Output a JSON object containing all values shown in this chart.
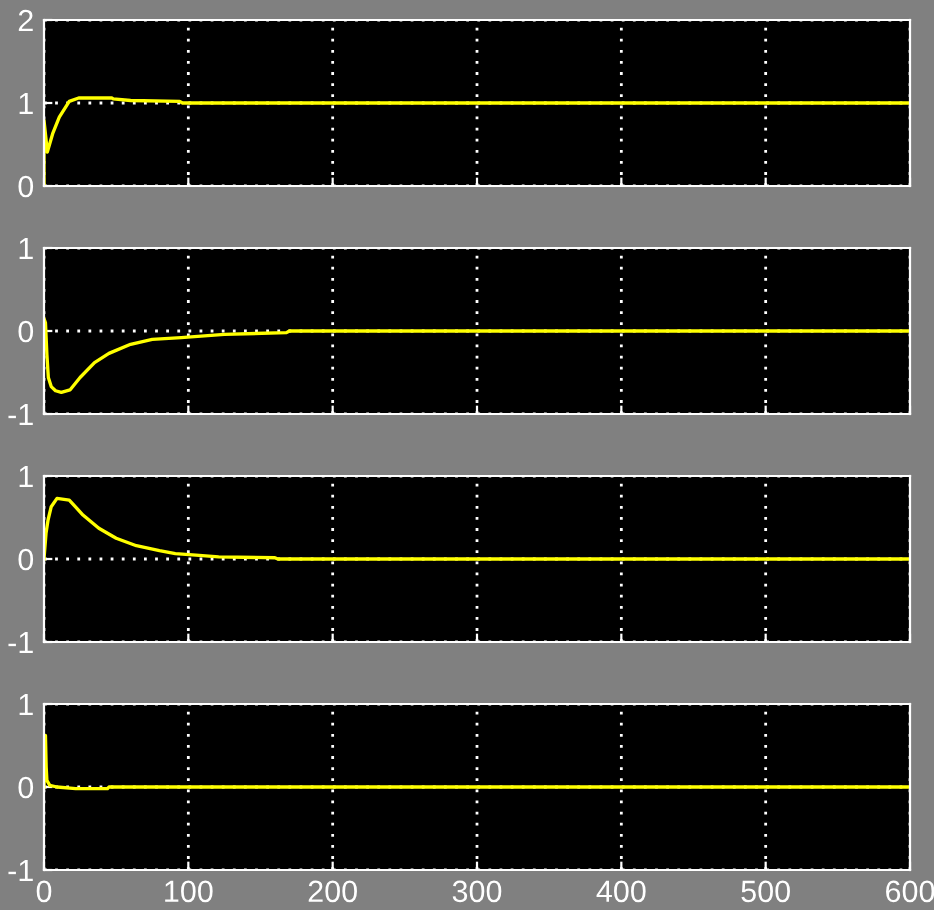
{
  "chart_data": [
    {
      "type": "line",
      "x": [
        0,
        0.01,
        2.3,
        6,
        10.6,
        17.5,
        24,
        47,
        48,
        60,
        94,
        96,
        600
      ],
      "series": [
        {
          "color": "#ffff00",
          "values": [
            0,
            0.79,
            0.41,
            0.63,
            0.83,
            1.02,
            1.06,
            1.06,
            1.05,
            1.03,
            1.02,
            1.0,
            1.0
          ]
        }
      ],
      "xlim": [
        0,
        600
      ],
      "xticks": [
        0,
        100,
        200,
        300,
        400,
        500,
        600
      ],
      "ylim": [
        0,
        2
      ],
      "yticks": [
        0,
        1,
        2
      ],
      "grid": true,
      "line_style": "solid",
      "tick_labels": "y"
    },
    {
      "type": "line",
      "x": [
        0,
        1,
        2,
        3,
        5,
        8,
        12,
        18,
        25,
        35,
        45,
        60,
        75,
        95,
        125,
        168,
        170,
        600
      ],
      "series": [
        {
          "color": "#ffff00",
          "values": [
            0.15,
            0.1,
            -0.28,
            -0.56,
            -0.67,
            -0.72,
            -0.74,
            -0.71,
            -0.56,
            -0.38,
            -0.27,
            -0.16,
            -0.1,
            -0.08,
            -0.04,
            -0.02,
            0,
            0
          ]
        }
      ],
      "xlim": [
        0,
        600
      ],
      "xticks": [
        0,
        100,
        200,
        300,
        400,
        500,
        600
      ],
      "ylim": [
        -1,
        1
      ],
      "yticks": [
        -1,
        0,
        1
      ],
      "grid": true,
      "line_style": "solid",
      "tick_labels": "y"
    },
    {
      "type": "line",
      "x": [
        0,
        1.4,
        2.8,
        5,
        9,
        17.5,
        27,
        38,
        50,
        64,
        80,
        91,
        103,
        121,
        160,
        162,
        600
      ],
      "series": [
        {
          "color": "#ffff00",
          "values": [
            0,
            0.31,
            0.47,
            0.63,
            0.73,
            0.71,
            0.53,
            0.37,
            0.25,
            0.16,
            0.1,
            0.065,
            0.05,
            0.025,
            0.015,
            0,
            0
          ]
        }
      ],
      "xlim": [
        0,
        600
      ],
      "xticks": [
        0,
        100,
        200,
        300,
        400,
        500,
        600
      ],
      "ylim": [
        -1,
        1
      ],
      "yticks": [
        -1,
        0,
        1
      ],
      "grid": true,
      "line_style": "solid",
      "tick_labels": "y"
    },
    {
      "type": "line",
      "x": [
        0,
        1,
        1.5,
        2,
        4,
        9,
        22,
        44,
        45,
        600
      ],
      "series": [
        {
          "color": "#ffff00",
          "values": [
            0,
            0.62,
            0.24,
            0.08,
            0.02,
            0,
            -0.02,
            -0.02,
            0,
            0
          ]
        }
      ],
      "xlim": [
        0,
        600
      ],
      "xticks": [
        0,
        100,
        200,
        300,
        400,
        500,
        600
      ],
      "ylim": [
        -1,
        1
      ],
      "yticks": [
        -1,
        0,
        1
      ],
      "grid": true,
      "line_style": "solid"
    }
  ]
}
